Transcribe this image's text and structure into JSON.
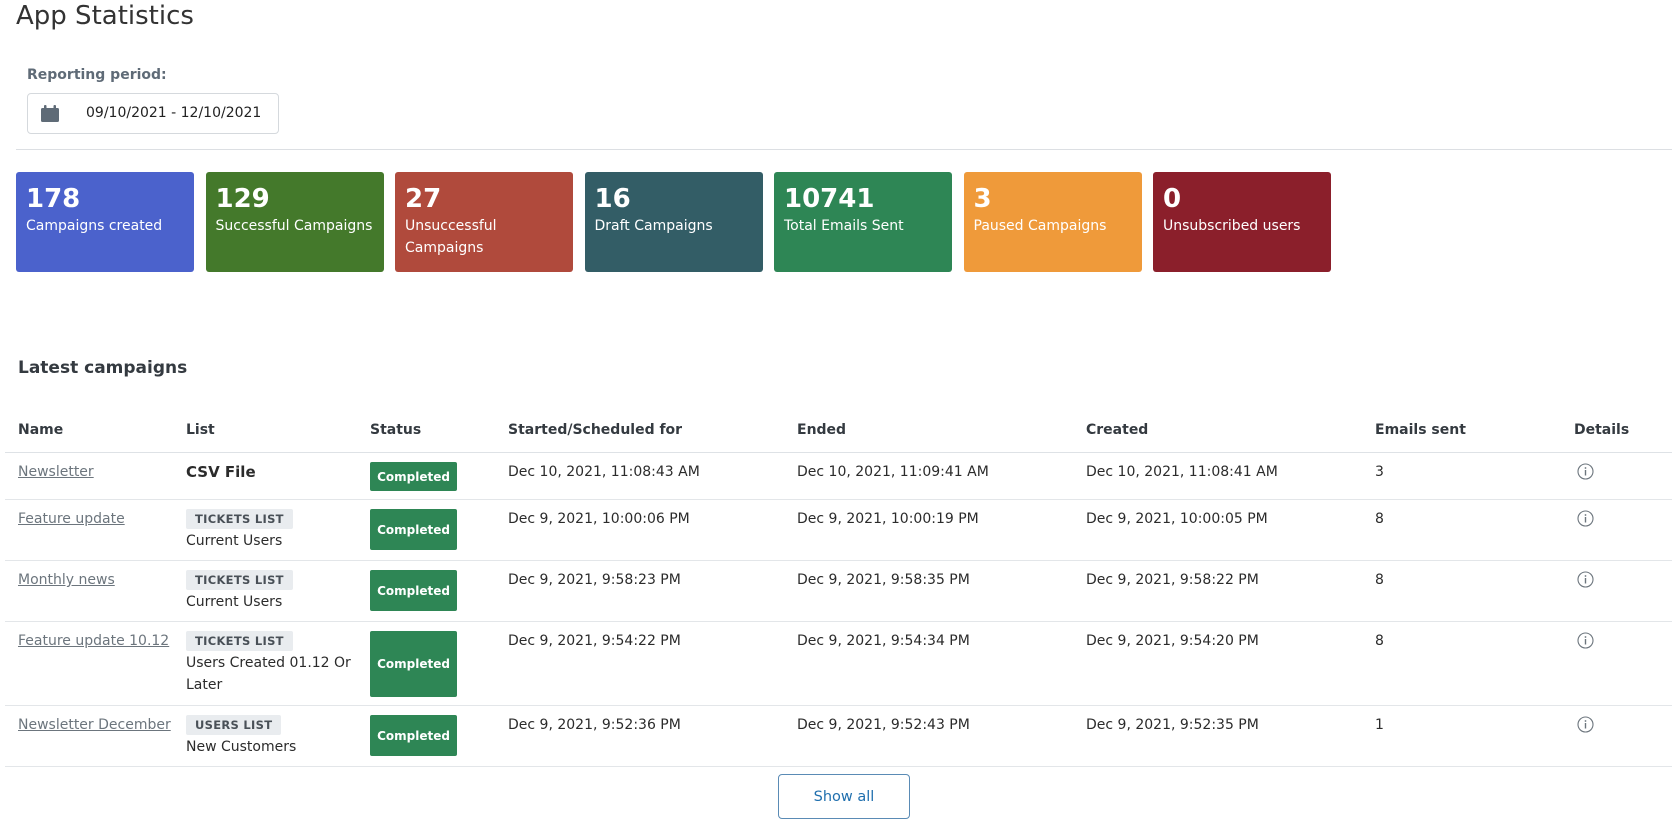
{
  "header": {
    "title": "App Statistics"
  },
  "period": {
    "label": "Reporting period:",
    "value": "09/10/2021 - 12/10/2021",
    "icon": "calendar-icon"
  },
  "tiles": [
    {
      "value": "178",
      "label": "Campaigns created",
      "color": "#4b62cc"
    },
    {
      "value": "129",
      "label": "Successful Campaigns",
      "color": "#44792b"
    },
    {
      "value": "27",
      "label": "Unsuccessful Campaigns",
      "color": "#b04a3c"
    },
    {
      "value": "16",
      "label": "Draft Campaigns",
      "color": "#335d66"
    },
    {
      "value": "10741",
      "label": "Total Emails Sent",
      "color": "#2e8655"
    },
    {
      "value": "3",
      "label": "Paused Campaigns",
      "color": "#ef9a3a"
    },
    {
      "value": "0",
      "label": "Unsubscribed users",
      "color": "#8b1f2b"
    }
  ],
  "section": {
    "title": "Latest campaigns"
  },
  "table": {
    "headers": [
      "Name",
      "List",
      "Status",
      "Started/Scheduled for",
      "Ended",
      "Created",
      "Emails sent",
      "Details"
    ],
    "rows": [
      {
        "name": "Newsletter",
        "list_type": "",
        "list_name": "CSV File",
        "status": "Completed",
        "started": "Dec 10, 2021, 11:08:43 AM",
        "ended": "Dec 10, 2021, 11:09:41 AM",
        "created": "Dec 10, 2021, 11:08:41 AM",
        "emails_sent": "3"
      },
      {
        "name": "Feature update",
        "list_type": "TICKETS LIST",
        "list_name": "Current Users",
        "status": "Completed",
        "started": "Dec 9, 2021, 10:00:06 PM",
        "ended": "Dec 9, 2021, 10:00:19 PM",
        "created": "Dec 9, 2021, 10:00:05 PM",
        "emails_sent": "8"
      },
      {
        "name": "Monthly news",
        "list_type": "TICKETS LIST",
        "list_name": "Current Users",
        "status": "Completed",
        "started": "Dec 9, 2021, 9:58:23 PM",
        "ended": "Dec 9, 2021, 9:58:35 PM",
        "created": "Dec 9, 2021, 9:58:22 PM",
        "emails_sent": "8"
      },
      {
        "name": "Feature update 10.12",
        "list_type": "TICKETS LIST",
        "list_name": "Users Created 01.12 Or Later",
        "status": "Completed",
        "started": "Dec 9, 2021, 9:54:22 PM",
        "ended": "Dec 9, 2021, 9:54:34 PM",
        "created": "Dec 9, 2021, 9:54:20 PM",
        "emails_sent": "8"
      },
      {
        "name": "Newsletter December",
        "list_type": "USERS LIST",
        "list_name": "New Customers",
        "status": "Completed",
        "started": "Dec 9, 2021, 9:52:36 PM",
        "ended": "Dec 9, 2021, 9:52:43 PM",
        "created": "Dec 9, 2021, 9:52:35 PM",
        "emails_sent": "1"
      }
    ]
  },
  "actions": {
    "show_all_label": "Show all"
  }
}
